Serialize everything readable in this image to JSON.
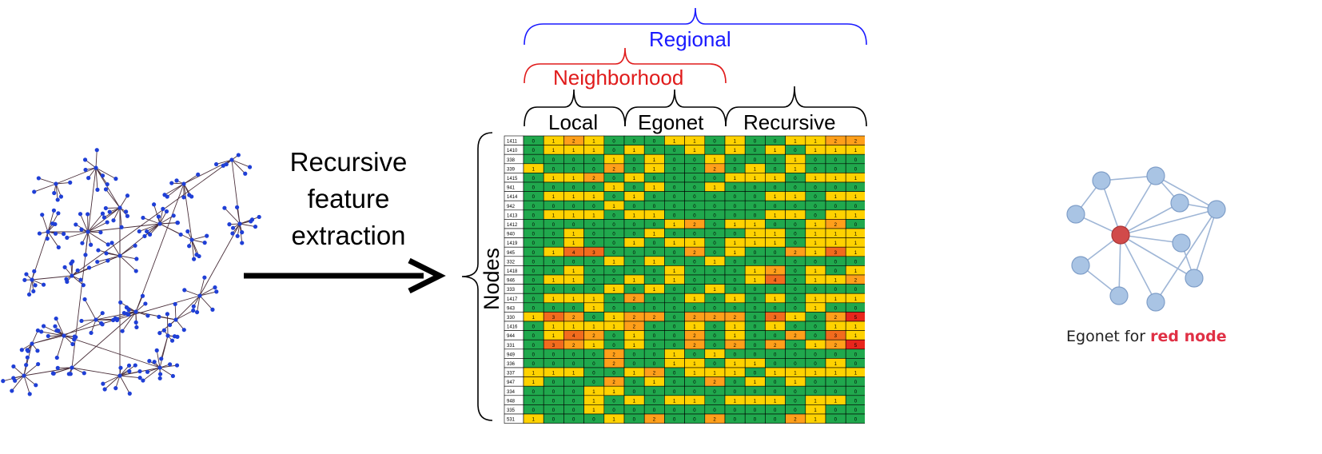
{
  "labels": {
    "process_lines": [
      "Recursive",
      "feature",
      "extraction"
    ],
    "regional": "Regional",
    "neighborhood": "Neighborhood",
    "local": "Local",
    "egonet": "Egonet",
    "recursive": "Recursive",
    "nodes_axis": "Nodes",
    "caption_prefix": "Egonet for",
    "caption_highlight": "red node"
  },
  "colors": {
    "bracket_blue": "#1a1aff",
    "bracket_red": "#e01b1b",
    "graph_node": "#1f3fd6",
    "ego_node": "#a9c4e4",
    "ego_center": "#d14a4a",
    "cell_0": "#20a84d",
    "cell_1": "#ffd200",
    "cell_2": "#ff9f1a",
    "cell_3": "#f26b1d",
    "cell_high": "#e8261c"
  },
  "matrix": {
    "row_ids": [
      "1411",
      "1410",
      "338",
      "339",
      "1415",
      "941",
      "1414",
      "942",
      "1413",
      "1412",
      "940",
      "1419",
      "945",
      "332",
      "1418",
      "946",
      "333",
      "1417",
      "943",
      "330",
      "1416",
      "944",
      "331",
      "949",
      "336",
      "337",
      "947",
      "334",
      "948",
      "335",
      "531"
    ],
    "rows": [
      [
        0,
        1,
        2,
        1,
        0,
        0,
        0,
        1,
        1,
        0,
        1,
        0,
        0,
        1,
        1,
        2,
        2
      ],
      [
        0,
        1,
        1,
        1,
        0,
        1,
        0,
        0,
        1,
        0,
        1,
        0,
        1,
        0,
        1,
        1,
        1
      ],
      [
        0,
        0,
        0,
        0,
        1,
        0,
        1,
        0,
        0,
        1,
        0,
        0,
        0,
        1,
        0,
        0,
        0
      ],
      [
        1,
        0,
        0,
        0,
        2,
        0,
        1,
        0,
        0,
        2,
        0,
        1,
        0,
        1,
        0,
        0,
        0
      ],
      [
        0,
        1,
        1,
        2,
        0,
        1,
        0,
        0,
        0,
        0,
        1,
        1,
        1,
        0,
        1,
        1,
        1
      ],
      [
        0,
        0,
        0,
        0,
        1,
        0,
        1,
        0,
        0,
        1,
        0,
        0,
        0,
        0,
        0,
        0,
        0
      ],
      [
        0,
        1,
        1,
        1,
        0,
        1,
        0,
        0,
        0,
        0,
        0,
        0,
        1,
        1,
        0,
        1,
        1
      ],
      [
        0,
        0,
        0,
        0,
        1,
        0,
        0,
        0,
        0,
        0,
        0,
        0,
        0,
        0,
        0,
        0,
        0
      ],
      [
        0,
        1,
        1,
        1,
        0,
        1,
        1,
        0,
        0,
        0,
        0,
        0,
        1,
        1,
        0,
        1,
        1
      ],
      [
        0,
        0,
        0,
        0,
        0,
        0,
        0,
        1,
        2,
        0,
        1,
        1,
        0,
        0,
        1,
        2,
        0
      ],
      [
        0,
        0,
        1,
        0,
        0,
        0,
        1,
        0,
        0,
        0,
        0,
        1,
        1,
        0,
        1,
        1,
        1
      ],
      [
        0,
        0,
        1,
        0,
        0,
        1,
        0,
        1,
        1,
        0,
        1,
        1,
        1,
        0,
        1,
        1,
        1
      ],
      [
        0,
        1,
        4,
        3,
        0,
        0,
        0,
        0,
        2,
        0,
        1,
        0,
        0,
        2,
        1,
        3,
        1
      ],
      [
        0,
        0,
        0,
        0,
        1,
        0,
        1,
        0,
        0,
        1,
        0,
        0,
        0,
        0,
        0,
        0,
        0
      ],
      [
        0,
        0,
        1,
        0,
        0,
        0,
        0,
        1,
        0,
        0,
        0,
        1,
        2,
        0,
        1,
        0,
        1
      ],
      [
        0,
        1,
        1,
        0,
        0,
        1,
        0,
        1,
        0,
        0,
        0,
        1,
        4,
        0,
        1,
        1,
        2
      ],
      [
        0,
        0,
        0,
        0,
        1,
        0,
        1,
        0,
        0,
        1,
        0,
        0,
        0,
        0,
        0,
        0,
        0
      ],
      [
        0,
        1,
        1,
        1,
        0,
        2,
        0,
        0,
        1,
        0,
        1,
        0,
        1,
        0,
        1,
        1,
        1
      ],
      [
        0,
        0,
        0,
        1,
        0,
        0,
        0,
        0,
        0,
        0,
        0,
        0,
        0,
        0,
        1,
        0,
        0
      ],
      [
        1,
        3,
        2,
        0,
        1,
        2,
        2,
        0,
        2,
        2,
        2,
        0,
        3,
        1,
        0,
        2,
        5
      ],
      [
        0,
        1,
        1,
        1,
        1,
        2,
        0,
        0,
        1,
        0,
        1,
        0,
        1,
        0,
        0,
        1,
        1
      ],
      [
        0,
        1,
        4,
        2,
        0,
        1,
        0,
        0,
        2,
        0,
        1,
        0,
        0,
        2,
        0,
        3,
        1
      ],
      [
        0,
        3,
        2,
        1,
        0,
        1,
        0,
        0,
        2,
        0,
        2,
        0,
        2,
        0,
        1,
        2,
        5
      ],
      [
        0,
        0,
        0,
        0,
        2,
        0,
        0,
        1,
        0,
        1,
        0,
        0,
        0,
        0,
        0,
        0,
        0
      ],
      [
        0,
        0,
        0,
        0,
        2,
        0,
        0,
        1,
        1,
        0,
        1,
        1,
        0,
        0,
        0,
        1,
        0
      ],
      [
        1,
        1,
        1,
        0,
        0,
        1,
        2,
        0,
        1,
        1,
        1,
        0,
        1,
        1,
        1,
        1,
        1
      ],
      [
        1,
        0,
        0,
        0,
        2,
        0,
        1,
        0,
        0,
        2,
        0,
        1,
        0,
        1,
        0,
        0,
        0
      ],
      [
        0,
        0,
        0,
        1,
        1,
        0,
        0,
        0,
        0,
        0,
        0,
        0,
        0,
        0,
        0,
        0,
        0
      ],
      [
        0,
        0,
        0,
        1,
        0,
        1,
        0,
        1,
        1,
        0,
        1,
        1,
        1,
        0,
        1,
        1,
        0
      ],
      [
        0,
        0,
        0,
        1,
        0,
        0,
        0,
        0,
        0,
        0,
        0,
        0,
        0,
        0,
        1,
        0,
        0
      ],
      [
        1,
        0,
        0,
        0,
        1,
        0,
        2,
        0,
        0,
        2,
        0,
        0,
        0,
        2,
        1,
        0,
        0
      ]
    ]
  }
}
